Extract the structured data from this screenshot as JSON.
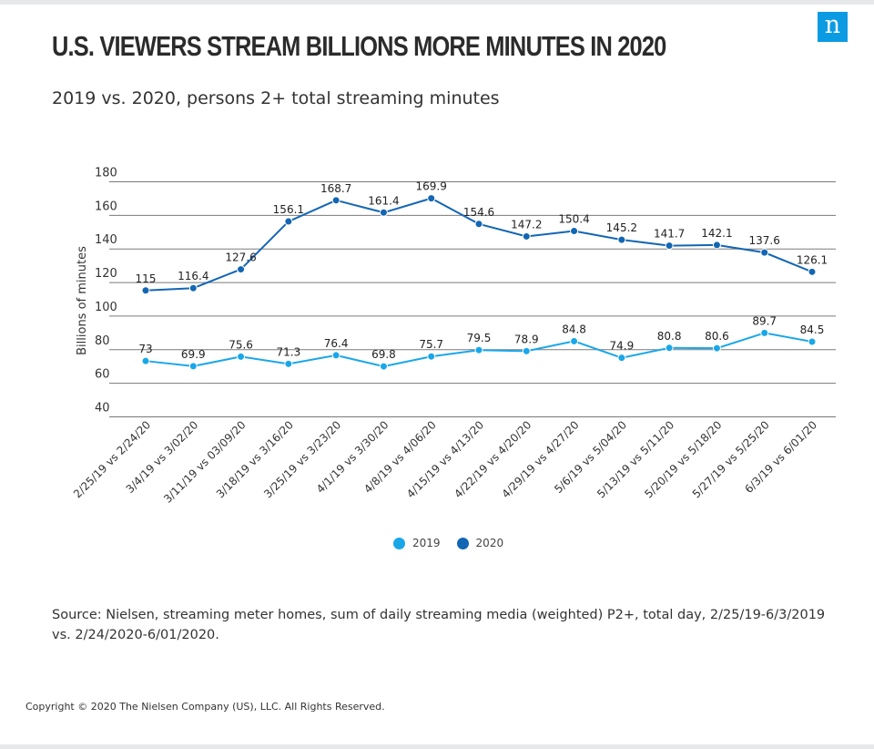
{
  "header": {
    "logo_text": "n",
    "title": "U.S. VIEWERS STREAM BILLIONS MORE MINUTES IN 2020",
    "subtitle": "2019 vs. 2020, persons 2+ total streaming minutes"
  },
  "footer": {
    "source": "Source: Nielsen, streaming meter homes, sum of daily streaming media (weighted) P2+, total day, 2/25/19-6/3/2019 vs. 2/24/2020-6/01/2020.",
    "copyright": "Copyright © 2020 The Nielsen Company (US), LLC. All Rights Reserved."
  },
  "chart_data": {
    "type": "line",
    "ylabel": "Billions of minutes",
    "ylim": [
      40,
      180
    ],
    "yticks": [
      40,
      60,
      80,
      100,
      120,
      140,
      160,
      180
    ],
    "grid": true,
    "legend_position": "bottom-center",
    "categories": [
      "2/25/19 vs 2/24/20",
      "3/4/19 vs 3/02/20",
      "3/11/19 vs 03/09/20",
      "3/18/19 vs 3/16/20",
      "3/25/19 vs 3/23/20",
      "4/1/19 vs 3/30/20",
      "4/8/19 vs 4/06/20",
      "4/15/19 vs 4/13/20",
      "4/22/19 vs 4/20/20",
      "4/29/19 vs 4/27/20",
      "5/6/19 vs 5/04/20",
      "5/13/19 vs 5/11/20",
      "5/20/19 vs 5/18/20",
      "5/27/19 vs 5/25/20",
      "6/3/19 vs 6/01/20"
    ],
    "series": [
      {
        "name": "2019",
        "color": "#1aa7e8",
        "values": [
          73,
          69.9,
          75.6,
          71.3,
          76.4,
          69.8,
          75.7,
          79.5,
          78.9,
          84.8,
          74.9,
          80.8,
          80.6,
          89.7,
          84.5
        ]
      },
      {
        "name": "2020",
        "color": "#1366b3",
        "values": [
          115,
          116.4,
          127.6,
          156.1,
          168.7,
          161.4,
          169.9,
          154.6,
          147.2,
          150.4,
          145.2,
          141.7,
          142.1,
          137.6,
          126.1
        ]
      }
    ]
  }
}
